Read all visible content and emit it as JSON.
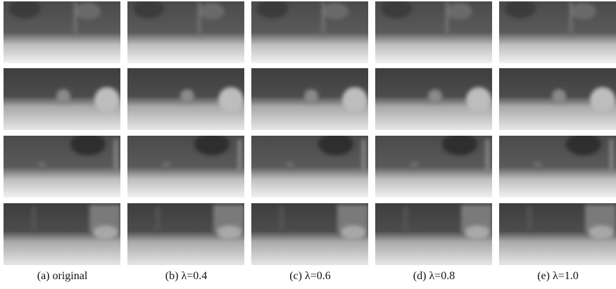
{
  "figure": {
    "captions": [
      "(a) original",
      "(b) λ=0.4",
      "(c) λ=0.6",
      "(d) λ=0.8",
      "(e) λ=1.0"
    ]
  }
}
